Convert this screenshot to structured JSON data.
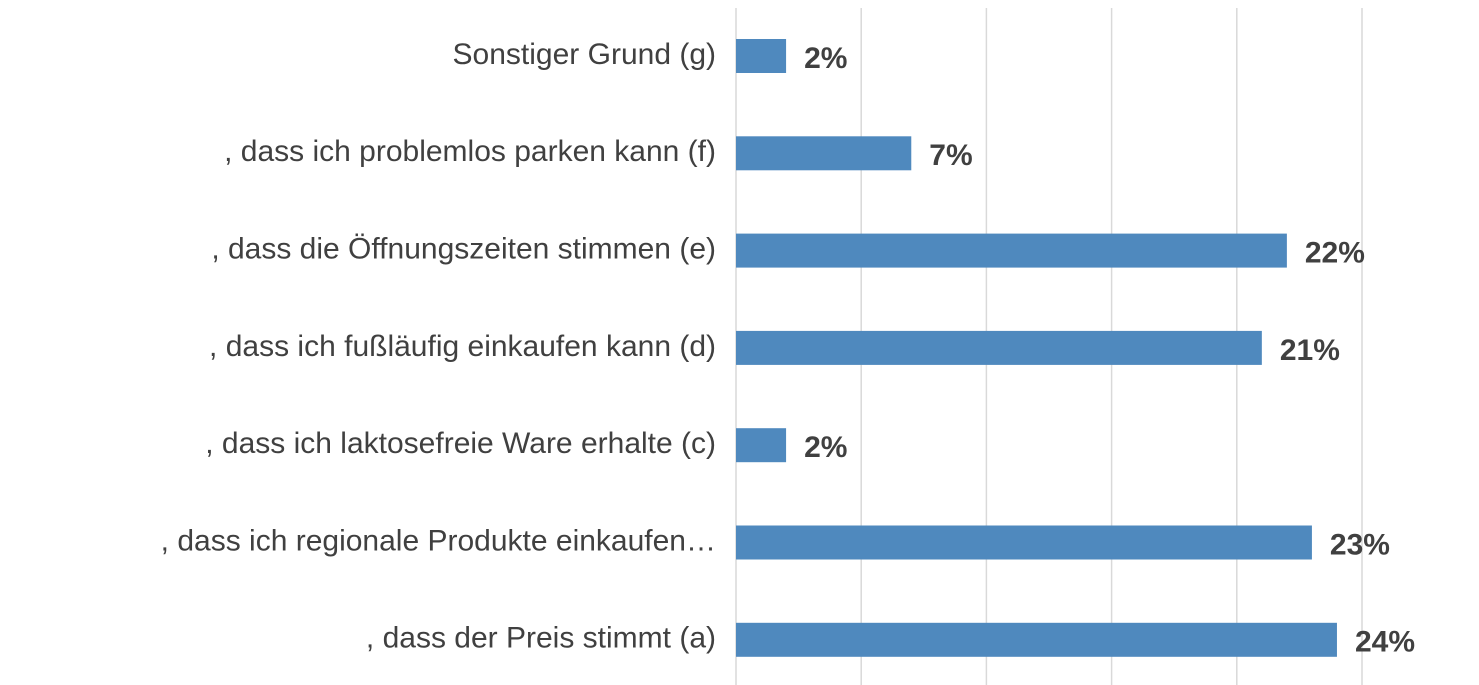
{
  "chart_data": {
    "type": "hbar",
    "categories": [
      "Sonstiger Grund (g)",
      ", dass ich problemlos parken kann (f)",
      ", dass die Öffnungszeiten stimmen (e)",
      ", dass ich fußläufig einkaufen kann (d)",
      ", dass ich laktosefreie Ware erhalte (c)",
      ", dass ich regionale Produkte einkaufen…",
      ", dass der Preis stimmt (a)"
    ],
    "values": [
      2,
      7,
      22,
      21,
      2,
      23,
      24
    ],
    "value_labels": [
      "2%",
      "7%",
      "22%",
      "21%",
      "2%",
      "23%",
      "24%"
    ],
    "color": "#4f89be",
    "xlim": [
      0,
      25
    ],
    "xticks": [
      0,
      5,
      10,
      15,
      20,
      25
    ],
    "grid": true
  }
}
